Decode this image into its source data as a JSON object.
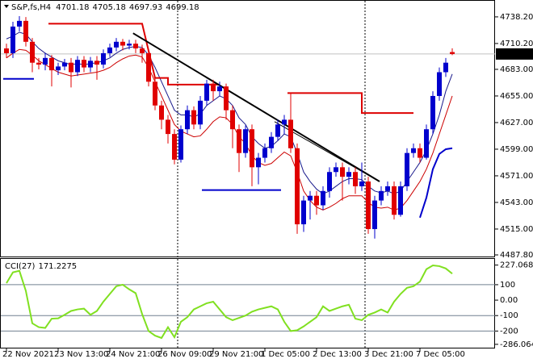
{
  "chart_data": [
    {
      "type": "candlestick",
      "symbol": "S&P,fs,H4",
      "categories": [
        "22 Nov 2021",
        null,
        null,
        null,
        null,
        null,
        null,
        null,
        "23 Nov 13:00",
        null,
        null,
        null,
        null,
        null,
        null,
        null,
        "24 Nov 21:00",
        null,
        null,
        null,
        null,
        null,
        null,
        null,
        "26 Nov 09:00",
        null,
        null,
        null,
        null,
        null,
        null,
        null,
        "29 Nov 21:00",
        null,
        null,
        null,
        null,
        null,
        null,
        null,
        "1 Dec 05:00",
        null,
        null,
        null,
        null,
        null,
        null,
        null,
        "2 Dec 13:00",
        null,
        null,
        null,
        null,
        null,
        null,
        null,
        "3 Dec 21:00",
        null,
        null,
        null,
        null,
        null,
        null,
        null,
        "7 Dec 05:00",
        null,
        null,
        null,
        null,
        null
      ],
      "open": [
        4705,
        4700,
        4728,
        4734,
        4712,
        4690,
        4688,
        4695,
        4682,
        4686,
        4690,
        4680,
        4693,
        4685,
        4692,
        4688,
        4700,
        4706,
        4712,
        4708,
        4710,
        4705,
        4700,
        4670,
        4645,
        4630,
        4615,
        4588,
        4620,
        4640,
        4625,
        4650,
        4668,
        4660,
        4665,
        4640,
        4620,
        4595,
        4620,
        4580,
        4590,
        4600,
        4612,
        4625,
        4630,
        4600,
        4520,
        4545,
        4550,
        4540,
        4555,
        4575,
        4580,
        4570,
        4575,
        4560,
        4565,
        4515,
        4545,
        4555,
        4560,
        4530,
        4560,
        4595,
        4600,
        4590,
        4620,
        4655,
        4680,
        4701.18
      ],
      "high": [
        4710,
        4733,
        4739,
        4738,
        4716,
        4695,
        4700,
        4698,
        4690,
        4694,
        4695,
        4697,
        4697,
        4696,
        4697,
        4704,
        4710,
        4716,
        4715,
        4714,
        4714,
        4709,
        4704,
        4674,
        4650,
        4635,
        4620,
        4624,
        4645,
        4644,
        4655,
        4672,
        4672,
        4670,
        4668,
        4645,
        4625,
        4624,
        4625,
        4595,
        4605,
        4617,
        4630,
        4635,
        4658,
        4605,
        4550,
        4555,
        4555,
        4560,
        4580,
        4585,
        4585,
        4580,
        4580,
        4585,
        4570,
        4550,
        4560,
        4565,
        4565,
        4565,
        4600,
        4605,
        4605,
        4625,
        4660,
        4685,
        4695,
        4705.18
      ],
      "low": [
        4695,
        4695,
        4723,
        4707,
        4680,
        4683,
        4682,
        4665,
        4677,
        4682,
        4664,
        4676,
        4680,
        4680,
        4672,
        4684,
        4696,
        4702,
        4703,
        4704,
        4700,
        4690,
        4665,
        4640,
        4620,
        4605,
        4583,
        4585,
        4615,
        4620,
        4620,
        4645,
        4650,
        4655,
        4630,
        4600,
        4575,
        4590,
        4560,
        4562,
        4585,
        4595,
        4608,
        4615,
        4595,
        4510,
        4512,
        4525,
        4530,
        4535,
        4548,
        4570,
        4545,
        4562,
        4552,
        4555,
        4510,
        4505,
        4540,
        4550,
        4525,
        4528,
        4555,
        4590,
        4585,
        4588,
        4615,
        4650,
        4675,
        4697.93
      ],
      "close": [
        4700,
        4728,
        4734,
        4712,
        4690,
        4688,
        4695,
        4682,
        4686,
        4690,
        4680,
        4693,
        4685,
        4692,
        4688,
        4700,
        4706,
        4712,
        4708,
        4710,
        4705,
        4700,
        4670,
        4645,
        4630,
        4615,
        4588,
        4620,
        4640,
        4625,
        4650,
        4668,
        4660,
        4665,
        4640,
        4620,
        4595,
        4620,
        4580,
        4590,
        4600,
        4612,
        4625,
        4630,
        4600,
        4520,
        4545,
        4550,
        4540,
        4555,
        4575,
        4580,
        4570,
        4575,
        4560,
        4565,
        4515,
        4545,
        4555,
        4560,
        4530,
        4560,
        4595,
        4600,
        4590,
        4620,
        4655,
        4680,
        4690,
        4699.18
      ],
      "up_color": "#0000cd",
      "down_color": "#e00000",
      "overlays": [
        {
          "color": "#1a1a8c",
          "width": 1,
          "values": [
            4715,
            4718,
            4722,
            4720,
            4712,
            4705,
            4700,
            4696,
            4692,
            4690,
            4688,
            4689,
            4688,
            4689,
            4690,
            4692,
            4695,
            4700,
            4704,
            4706,
            4707,
            4706,
            4698,
            4685,
            4670,
            4655,
            4640,
            4635,
            4635,
            4633,
            4636,
            4645,
            4650,
            4655,
            4652,
            4645,
            4632,
            4625,
            4612,
            4605,
            4600,
            4602,
            4608,
            4615,
            4612,
            4595,
            4575,
            4565,
            4557,
            4552,
            4555,
            4560,
            4565,
            4568,
            4568,
            4567,
            4560,
            4555,
            4553,
            4555,
            4552,
            4555,
            4565,
            4575,
            4585,
            4598,
            4615,
            4635,
            4660,
            4678
          ]
        },
        {
          "color": "#cc0000",
          "width": 1,
          "values": [
            4695,
            4700,
            4704,
            4703,
            4698,
            4692,
            4688,
            4684,
            4680,
            4678,
            4676,
            4677,
            4678,
            4679,
            4680,
            4682,
            4685,
            4690,
            4694,
            4697,
            4698,
            4696,
            4685,
            4670,
            4655,
            4640,
            4625,
            4618,
            4615,
            4612,
            4613,
            4620,
            4628,
            4633,
            4632,
            4625,
            4612,
            4605,
            4592,
            4585,
            4582,
            4584,
            4590,
            4596,
            4592,
            4575,
            4555,
            4545,
            4538,
            4535,
            4538,
            4542,
            4547,
            4550,
            4550,
            4550,
            4543,
            4538,
            4537,
            4538,
            4535,
            4537,
            4545,
            4555,
            4565,
            4578,
            4595,
            4615,
            4635,
            4655
          ]
        },
        {
          "color": "#0000cc",
          "width": 2,
          "values": [
            null,
            null,
            null,
            null,
            null,
            null,
            null,
            null,
            null,
            null,
            null,
            null,
            null,
            null,
            null,
            null,
            null,
            null,
            null,
            null,
            null,
            null,
            null,
            null,
            null,
            null,
            null,
            null,
            null,
            null,
            null,
            null,
            null,
            null,
            null,
            null,
            null,
            null,
            null,
            null,
            null,
            null,
            null,
            null,
            null,
            null,
            null,
            null,
            null,
            null,
            null,
            null,
            null,
            null,
            null,
            null,
            null,
            null,
            null,
            null,
            null,
            null,
            null,
            null,
            4527,
            4548,
            4578,
            4594,
            4599,
            4600
          ]
        }
      ],
      "lines": [
        {
          "color": "#dd0000",
          "width": 2,
          "points": [
            [
              6.5,
              4731
            ],
            [
              21,
              4731
            ],
            [
              23,
              4674
            ],
            [
              25,
              4674
            ],
            [
              25,
              4667
            ],
            [
              33,
              4667
            ]
          ]
        },
        {
          "color": "#dd0000",
          "width": 2,
          "points": [
            [
              43.5,
              4658
            ],
            [
              55,
              4658
            ],
            [
              55,
              4637
            ],
            [
              63,
              4637
            ]
          ]
        },
        {
          "color": "#0000cc",
          "width": 2,
          "points": [
            [
              -0.5,
              4673
            ],
            [
              4.25,
              4673
            ]
          ]
        },
        {
          "color": "#0000cc",
          "width": 2,
          "points": [
            [
              30.25,
              4556
            ],
            [
              42.5,
              4556
            ]
          ]
        },
        {
          "color": "#000000",
          "width": 2,
          "points": [
            [
              19.6,
              4721
            ],
            [
              57.75,
              4565
            ]
          ]
        },
        {
          "color": "#000000",
          "width": 1,
          "points": [
            [
              41.5,
              4628
            ],
            [
              57.75,
              4565
            ]
          ]
        }
      ],
      "ylim": [
        4486.1,
        4755.1
      ],
      "yticks": [
        {
          "value": 4738.2,
          "label": "4738.20"
        },
        {
          "value": 4710.2,
          "label": "4710.20"
        },
        {
          "value": 4683,
          "label": "4683.00"
        },
        {
          "value": 4655,
          "label": "4655.00"
        },
        {
          "value": 4627,
          "label": "4627.00"
        },
        {
          "value": 4599,
          "label": "4599.00"
        },
        {
          "value": 4571,
          "label": "4571.00"
        },
        {
          "value": 4543,
          "label": "4543.00"
        },
        {
          "value": 4515,
          "label": "4515.00"
        },
        {
          "value": 4487.8,
          "label": "4487.80"
        }
      ]
    },
    {
      "type": "line",
      "indicator": "CCI(27)",
      "color": "#80e020",
      "values": [
        110,
        180,
        190,
        60,
        -150,
        -175,
        -180,
        -120,
        -118,
        -95,
        -70,
        -60,
        -55,
        -95,
        -70,
        -10,
        40,
        90,
        100,
        70,
        45,
        -90,
        -200,
        -230,
        -245,
        -175,
        -240,
        -140,
        -110,
        -60,
        -40,
        -20,
        -10,
        -60,
        -110,
        -130,
        -115,
        -100,
        -75,
        -60,
        -50,
        -40,
        -60,
        -140,
        -200,
        -195,
        -170,
        -140,
        -110,
        -40,
        -70,
        -55,
        -40,
        -30,
        -120,
        -130,
        -95,
        -80,
        -60,
        -80,
        -10,
        40,
        80,
        90,
        120,
        200,
        225,
        220,
        205,
        171.2275
      ],
      "levels": [
        100,
        -100,
        -200
      ],
      "level_color": "#708090",
      "ylim": [
        -307.7,
        266.7
      ],
      "yticks": [
        227.0686,
        100,
        {
          "value": 0,
          "label": "0.00"
        },
        -100,
        -200,
        -286.0641
      ]
    }
  ]
}
